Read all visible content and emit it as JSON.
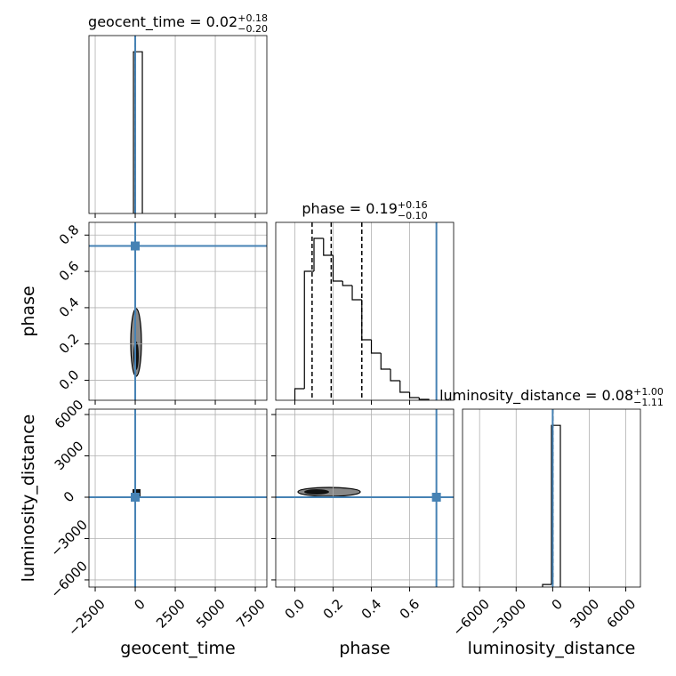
{
  "chart_data": {
    "type": "corner",
    "grid": true,
    "truth_color": "#4682b4",
    "parameters": [
      {
        "name": "geocent_time",
        "title": "geocent_time = 0.02",
        "title_upper": "+0.18",
        "title_lower": "−0.20",
        "xlim": [
          -2890,
          8220
        ],
        "xticks": [
          {
            "value": -2500,
            "label": "−2500"
          },
          0,
          2500,
          5000,
          7500
        ],
        "truth": 0,
        "quantiles": [
          -0.18,
          0.02,
          0.2
        ],
        "bins": [
          -110,
          445
        ],
        "counts": [
          1
        ],
        "hist_ylim": [
          0,
          1.1
        ]
      },
      {
        "name": "phase",
        "title": "phase = 0.19",
        "title_upper": "+0.16",
        "title_lower": "−0.10",
        "xlim": [
          -0.1,
          0.83
        ],
        "ylim": [
          -0.11,
          0.87
        ],
        "xticks": [
          {
            "value": 0,
            "label": "0.0"
          },
          0.2,
          0.4,
          0.6
        ],
        "yticks": [
          {
            "value": 0,
            "label": "0.0"
          },
          0.2,
          0.4,
          0.6,
          0.8
        ],
        "truth": 0.74,
        "quantiles": [
          0.09,
          0.19,
          0.35
        ],
        "bins": [
          0,
          0.05,
          0.1,
          0.15,
          0.2,
          0.25,
          0.3,
          0.35,
          0.4,
          0.45,
          0.5,
          0.55,
          0.6,
          0.65,
          0.7
        ],
        "counts": [
          13,
          145,
          182,
          163,
          134,
          129,
          113,
          68,
          53,
          35,
          22,
          9,
          3,
          1
        ],
        "hist_ylim": [
          0,
          200
        ]
      },
      {
        "name": "luminosity_distance",
        "title": "luminosity_distance = 0.08",
        "title_upper": "+1.00",
        "title_lower": "−1.11",
        "xlim": [
          -7400,
          7200
        ],
        "ylim": [
          -6520,
          6390
        ],
        "xticks": [
          {
            "value": -6000,
            "label": "−6000"
          },
          {
            "value": -3000,
            "label": "−3000"
          },
          0,
          3000,
          6000
        ],
        "yticks": [
          {
            "value": -6000,
            "label": "−6000"
          },
          {
            "value": -3000,
            "label": "−3000"
          },
          0,
          3000,
          6000
        ],
        "truth": 0,
        "quantiles": [
          -1.11,
          0.08,
          1.08
        ],
        "bins": [
          -830,
          -100,
          630
        ],
        "counts": [
          0.016,
          1
        ],
        "hist_ylim": [
          0,
          1.1
        ]
      }
    ]
  }
}
